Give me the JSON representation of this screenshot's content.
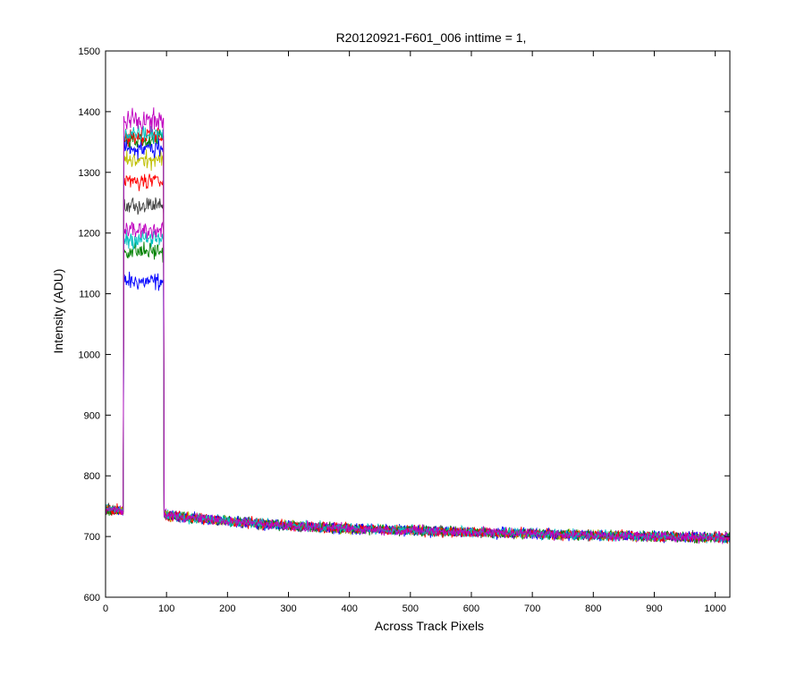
{
  "chart_data": {
    "type": "line",
    "title": "R20120921-F601_006 inttime = 1,",
    "xlabel": "Across Track Pixels",
    "ylabel": "Intensity (ADU)",
    "xlim": [
      0,
      1024
    ],
    "ylim": [
      600,
      1500
    ],
    "xticks": [
      0,
      100,
      200,
      300,
      400,
      500,
      600,
      700,
      800,
      900,
      1000
    ],
    "yticks": [
      600,
      700,
      800,
      900,
      1000,
      1100,
      1200,
      1300,
      1400,
      1500
    ],
    "grid": false,
    "legend": "none",
    "n_pixels": 1024,
    "background_profile": {
      "x": [
        0,
        100,
        200,
        300,
        400,
        500,
        600,
        700,
        800,
        900,
        1024
      ],
      "y": [
        745,
        735,
        725,
        718,
        713,
        710,
        707,
        705,
        702,
        700,
        698
      ],
      "noise_amplitude": 12
    },
    "peak": {
      "x_start": 30,
      "x_end": 95
    },
    "series": [
      {
        "color": "#0000ff",
        "peak_level": 1120,
        "noise_amplitude": 22
      },
      {
        "color": "#008000",
        "peak_level": 1170,
        "noise_amplitude": 22
      },
      {
        "color": "#00bfbf",
        "peak_level": 1190,
        "noise_amplitude": 22
      },
      {
        "color": "#bf00bf",
        "peak_level": 1205,
        "noise_amplitude": 22
      },
      {
        "color": "#404040",
        "peak_level": 1245,
        "noise_amplitude": 22
      },
      {
        "color": "#ff0000",
        "peak_level": 1285,
        "noise_amplitude": 22
      },
      {
        "color": "#bfbf00",
        "peak_level": 1320,
        "noise_amplitude": 22
      },
      {
        "color": "#0000ff",
        "peak_level": 1340,
        "noise_amplitude": 22
      },
      {
        "color": "#008000",
        "peak_level": 1355,
        "noise_amplitude": 22
      },
      {
        "color": "#ff0000",
        "peak_level": 1360,
        "noise_amplitude": 22
      },
      {
        "color": "#00bfbf",
        "peak_level": 1365,
        "noise_amplitude": 22
      },
      {
        "color": "#bf00bf",
        "peak_level": 1385,
        "noise_amplitude": 25
      }
    ]
  }
}
